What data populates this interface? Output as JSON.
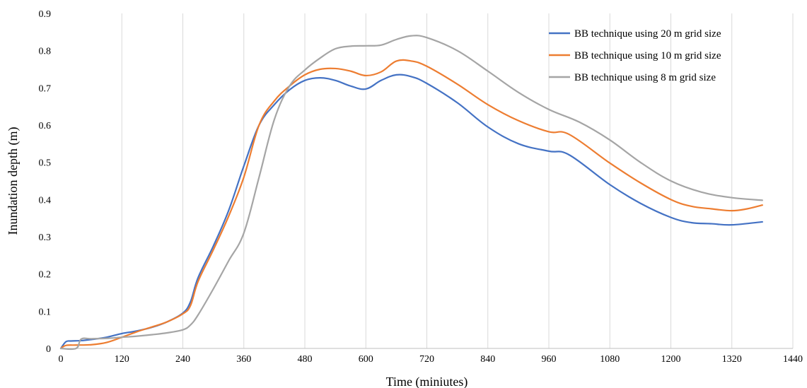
{
  "chart_data": {
    "type": "line",
    "title": "",
    "xlabel": "Time (miniutes)",
    "ylabel": "Inundation depth (m)",
    "xlim": [
      0,
      1440
    ],
    "ylim": [
      0,
      0.9
    ],
    "xticks": [
      0,
      120,
      240,
      360,
      480,
      600,
      720,
      840,
      960,
      1080,
      1200,
      1320,
      1440
    ],
    "yticks": [
      0,
      0.1,
      0.2,
      0.3,
      0.4,
      0.5,
      0.6,
      0.7,
      0.8,
      0.9
    ],
    "xtick_labels": [
      "0",
      "120",
      "240",
      "360",
      "480",
      "600",
      "720",
      "840",
      "960",
      "1080",
      "1200",
      "1320",
      "1440"
    ],
    "ytick_labels": [
      "0",
      "0.1",
      "0.2",
      "0.3",
      "0.4",
      "0.5",
      "0.6",
      "0.7",
      "0.8",
      "0.9"
    ],
    "grid": "vertical",
    "legend_position": "top-right",
    "series": [
      {
        "name": "BB technique using 20 m grid size",
        "color": "#4472c4",
        "x": [
          0,
          10,
          20,
          40,
          60,
          90,
          120,
          150,
          180,
          210,
          240,
          255,
          270,
          300,
          330,
          360,
          390,
          420,
          450,
          480,
          510,
          540,
          570,
          600,
          630,
          660,
          690,
          720,
          780,
          840,
          900,
          960,
          1000,
          1080,
          1140,
          1200,
          1240,
          1280,
          1320,
          1380
        ],
        "y": [
          0,
          0.018,
          0.02,
          0.021,
          0.024,
          0.03,
          0.04,
          0.047,
          0.057,
          0.072,
          0.095,
          0.125,
          0.19,
          0.275,
          0.37,
          0.49,
          0.6,
          0.655,
          0.695,
          0.72,
          0.727,
          0.72,
          0.705,
          0.697,
          0.72,
          0.735,
          0.73,
          0.712,
          0.66,
          0.595,
          0.55,
          0.53,
          0.52,
          0.44,
          0.39,
          0.352,
          0.338,
          0.335,
          0.332,
          0.34
        ]
      },
      {
        "name": "BB technique using 10 m grid size",
        "color": "#ed7d31",
        "x": [
          0,
          10,
          30,
          60,
          90,
          120,
          150,
          180,
          210,
          240,
          255,
          270,
          300,
          330,
          360,
          390,
          420,
          450,
          480,
          510,
          540,
          570,
          600,
          630,
          660,
          690,
          720,
          780,
          840,
          900,
          960,
          1000,
          1080,
          1140,
          1200,
          1240,
          1280,
          1320,
          1350,
          1380
        ],
        "y": [
          0,
          0.008,
          0.009,
          0.01,
          0.016,
          0.03,
          0.045,
          0.058,
          0.072,
          0.093,
          0.115,
          0.18,
          0.265,
          0.355,
          0.46,
          0.6,
          0.665,
          0.705,
          0.735,
          0.75,
          0.752,
          0.745,
          0.733,
          0.743,
          0.772,
          0.772,
          0.758,
          0.71,
          0.655,
          0.612,
          0.582,
          0.575,
          0.498,
          0.445,
          0.4,
          0.382,
          0.375,
          0.37,
          0.375,
          0.385
        ]
      },
      {
        "name": "BB technique using 8 m grid size",
        "color": "#a5a5a5",
        "x": [
          0,
          30,
          40,
          60,
          90,
          120,
          150,
          180,
          210,
          240,
          255,
          270,
          300,
          330,
          360,
          390,
          420,
          450,
          480,
          510,
          540,
          570,
          600,
          630,
          660,
          690,
          720,
          780,
          840,
          900,
          960,
          1020,
          1080,
          1140,
          1200,
          1260,
          1320,
          1380
        ],
        "y": [
          0,
          0,
          0.025,
          0.026,
          0.027,
          0.03,
          0.033,
          0.037,
          0.042,
          0.05,
          0.063,
          0.09,
          0.16,
          0.235,
          0.31,
          0.46,
          0.615,
          0.705,
          0.748,
          0.78,
          0.805,
          0.812,
          0.813,
          0.815,
          0.83,
          0.84,
          0.835,
          0.8,
          0.745,
          0.688,
          0.642,
          0.608,
          0.56,
          0.5,
          0.45,
          0.42,
          0.405,
          0.398
        ]
      }
    ]
  }
}
